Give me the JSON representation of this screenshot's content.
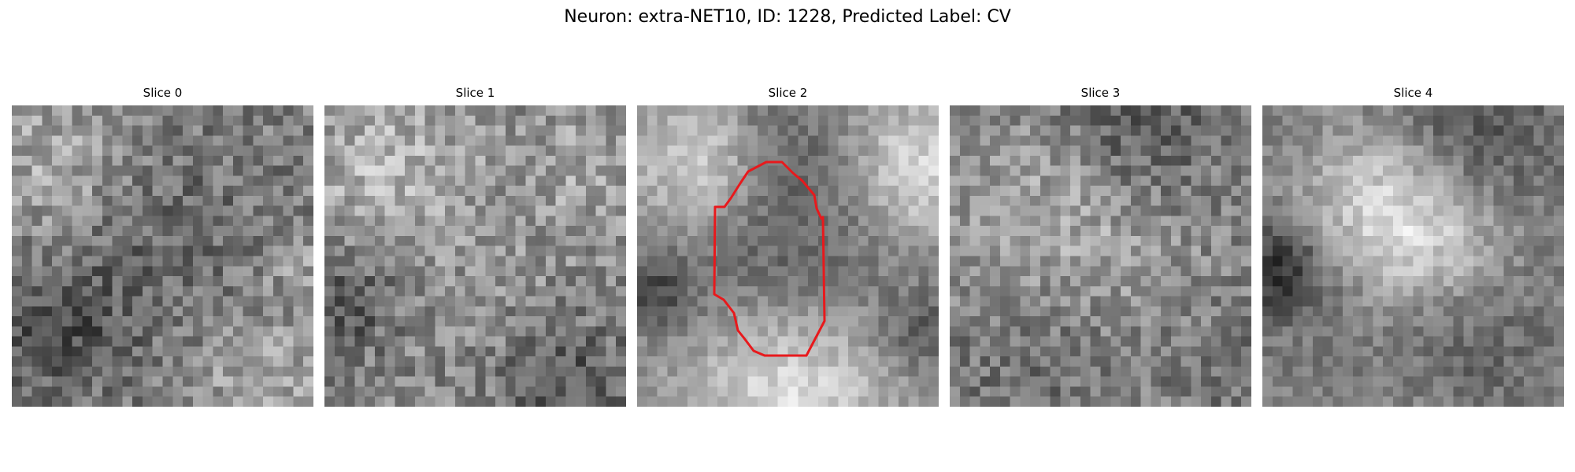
{
  "figure": {
    "title": "Neuron: extra-NET10, ID: 1228, Predicted Label: CV"
  },
  "panels": [
    {
      "title": "Slice 0",
      "seed": 11,
      "base": 0.52,
      "noise": 0.34,
      "blobs": [
        [
          0.15,
          0.2,
          0.18,
          0.18
        ],
        [
          0.5,
          0.45,
          0.3,
          -0.12
        ],
        [
          0.15,
          0.75,
          0.15,
          -0.22
        ],
        [
          0.82,
          0.88,
          0.15,
          0.18
        ],
        [
          0.93,
          0.5,
          0.08,
          0.15
        ]
      ],
      "has_contour": false
    },
    {
      "title": "Slice 1",
      "seed": 23,
      "base": 0.52,
      "noise": 0.34,
      "blobs": [
        [
          0.2,
          0.2,
          0.2,
          0.18
        ],
        [
          0.55,
          0.5,
          0.3,
          0.05
        ],
        [
          0.08,
          0.65,
          0.12,
          -0.22
        ],
        [
          0.8,
          0.92,
          0.15,
          -0.2
        ],
        [
          0.9,
          0.2,
          0.15,
          0.12
        ]
      ],
      "has_contour": false
    },
    {
      "title": "Slice 2",
      "seed": 37,
      "base": 0.58,
      "noise": 0.2,
      "blobs": [
        [
          0.5,
          0.52,
          0.25,
          -0.22
        ],
        [
          0.22,
          0.18,
          0.15,
          0.28
        ],
        [
          0.92,
          0.22,
          0.14,
          0.28
        ],
        [
          0.5,
          0.92,
          0.22,
          0.32
        ],
        [
          0.45,
          0.1,
          0.14,
          -0.15
        ],
        [
          0.05,
          0.62,
          0.1,
          -0.28
        ],
        [
          0.95,
          0.75,
          0.1,
          -0.22
        ]
      ],
      "has_contour": true
    },
    {
      "title": "Slice 3",
      "seed": 53,
      "base": 0.5,
      "noise": 0.32,
      "blobs": [
        [
          0.4,
          0.38,
          0.28,
          0.22
        ],
        [
          0.6,
          0.1,
          0.2,
          -0.22
        ],
        [
          0.3,
          0.78,
          0.2,
          -0.12
        ],
        [
          0.9,
          0.85,
          0.15,
          -0.05
        ]
      ],
      "has_contour": false
    },
    {
      "title": "Slice 4",
      "seed": 71,
      "base": 0.5,
      "noise": 0.22,
      "blobs": [
        [
          0.35,
          0.3,
          0.18,
          0.25
        ],
        [
          0.55,
          0.48,
          0.18,
          0.3
        ],
        [
          0.06,
          0.55,
          0.12,
          -0.32
        ],
        [
          0.6,
          0.78,
          0.2,
          -0.18
        ],
        [
          0.7,
          0.05,
          0.2,
          -0.18
        ],
        [
          0.5,
          0.95,
          0.15,
          0.1
        ]
      ],
      "has_contour": false
    }
  ],
  "overlay": {
    "contour_color": "#e8191c"
  }
}
